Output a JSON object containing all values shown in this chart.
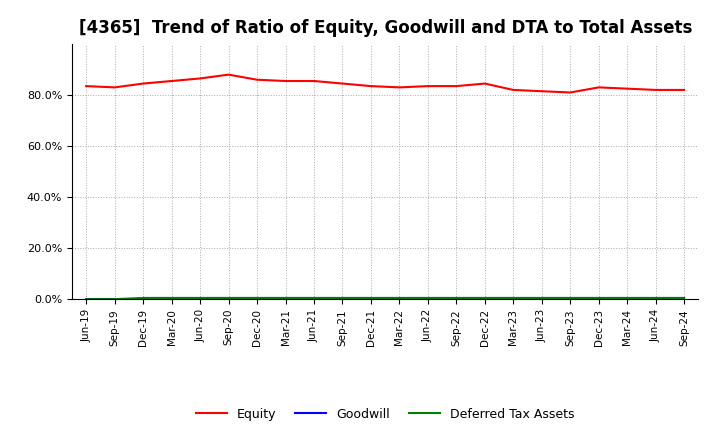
{
  "title": "[4365]  Trend of Ratio of Equity, Goodwill and DTA to Total Assets",
  "x_labels": [
    "Jun-19",
    "Sep-19",
    "Dec-19",
    "Mar-20",
    "Jun-20",
    "Sep-20",
    "Dec-20",
    "Mar-21",
    "Jun-21",
    "Sep-21",
    "Dec-21",
    "Mar-22",
    "Jun-22",
    "Sep-22",
    "Dec-22",
    "Mar-23",
    "Jun-23",
    "Sep-23",
    "Dec-23",
    "Mar-24",
    "Jun-24",
    "Sep-24"
  ],
  "equity": [
    83.5,
    83.0,
    84.5,
    85.5,
    86.5,
    88.0,
    86.0,
    85.5,
    85.5,
    84.5,
    83.5,
    83.0,
    83.5,
    83.5,
    84.5,
    82.0,
    81.5,
    81.0,
    83.0,
    82.5,
    82.0,
    82.0
  ],
  "goodwill": [
    0.0,
    0.0,
    0.0,
    0.0,
    0.0,
    0.0,
    0.0,
    0.0,
    0.0,
    0.0,
    0.0,
    0.0,
    0.0,
    0.0,
    0.0,
    0.0,
    0.0,
    0.0,
    0.0,
    0.0,
    0.0,
    0.0
  ],
  "dta": [
    0.0,
    0.0,
    0.5,
    0.5,
    0.5,
    0.5,
    0.5,
    0.5,
    0.5,
    0.5,
    0.5,
    0.5,
    0.5,
    0.5,
    0.5,
    0.5,
    0.5,
    0.5,
    0.5,
    0.5,
    0.5,
    0.5
  ],
  "equity_color": "#FF0000",
  "goodwill_color": "#0000FF",
  "dta_color": "#008000",
  "ylim": [
    0,
    100
  ],
  "yticks": [
    0,
    20,
    40,
    60,
    80
  ],
  "ytick_labels": [
    "0.0%",
    "20.0%",
    "40.0%",
    "60.0%",
    "80.0%"
  ],
  "background_color": "#FFFFFF",
  "grid_color": "#AAAAAA",
  "title_fontsize": 12,
  "legend_labels": [
    "Equity",
    "Goodwill",
    "Deferred Tax Assets"
  ]
}
